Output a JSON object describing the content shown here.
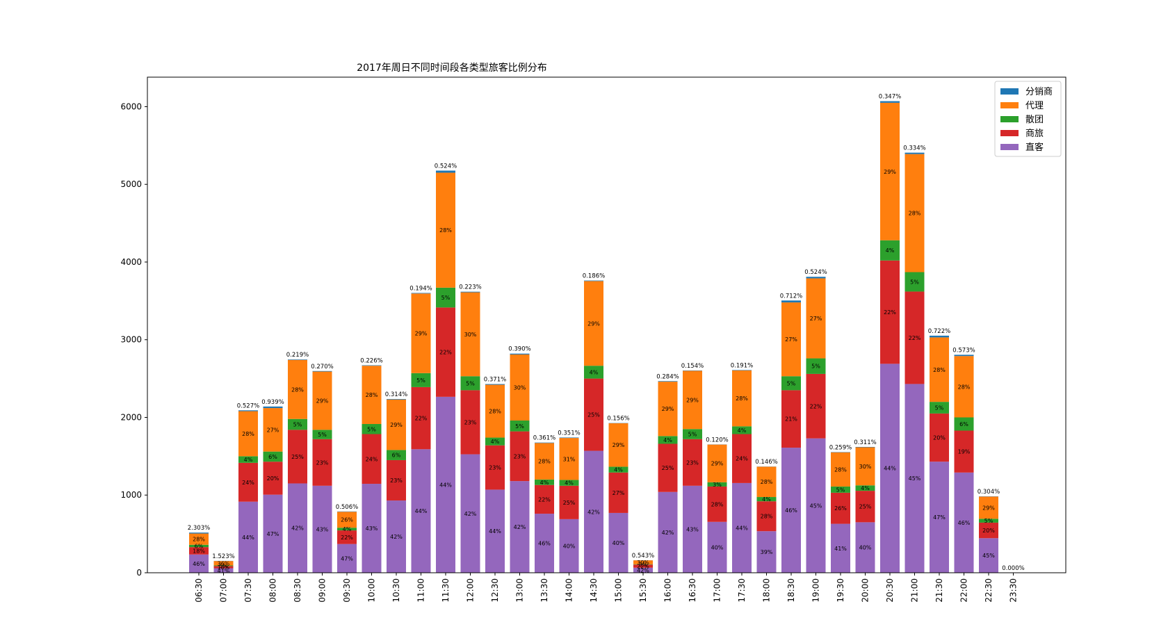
{
  "chart_data": {
    "type": "bar",
    "stacked": true,
    "title": "2017年周日不同时间段各类型旅客比例分布",
    "xlabel": "",
    "ylabel": "",
    "ylim": [
      0,
      6380
    ],
    "yticks": [
      "0",
      "1000",
      "2000",
      "3000",
      "4000",
      "5000",
      "6000"
    ],
    "ytick_values": [
      0,
      1000,
      2000,
      3000,
      4000,
      5000,
      6000
    ],
    "legend_position": "top-right",
    "grid": false,
    "categories": [
      "06:30",
      "07:00",
      "07:30",
      "08:00",
      "08:30",
      "09:00",
      "09:30",
      "10:00",
      "10:30",
      "11:00",
      "11:30",
      "12:00",
      "12:30",
      "13:00",
      "13:30",
      "14:00",
      "14:30",
      "15:00",
      "15:30",
      "16:00",
      "16:30",
      "17:00",
      "17:30",
      "18:00",
      "18:30",
      "19:00",
      "19:30",
      "20:00",
      "20:30",
      "21:00",
      "21:30",
      "22:00",
      "22:30",
      "23:30"
    ],
    "legend": [
      "分销商",
      "代理",
      "散团",
      "商旅",
      "直客"
    ],
    "series": [
      {
        "name": "直客",
        "color": "#9467bd",
        "values": [
          235,
          58,
          915,
          1005,
          1150,
          1120,
          370,
          1145,
          930,
          1590,
          2265,
          1525,
          1070,
          1180,
          760,
          690,
          1570,
          770,
          65,
          1040,
          1120,
          655,
          1155,
          535,
          1610,
          1730,
          630,
          650,
          2690,
          2430,
          1430,
          1290,
          445,
          0
        ],
        "labels": [
          "46%",
          "41%",
          "44%",
          "47%",
          "42%",
          "43%",
          "47%",
          "43%",
          "42%",
          "44%",
          "44%",
          "42%",
          "44%",
          "42%",
          "46%",
          "40%",
          "42%",
          "40%",
          "42%",
          "42%",
          "43%",
          "40%",
          "44%",
          "39%",
          "46%",
          "45%",
          "41%",
          "40%",
          "44%",
          "45%",
          "47%",
          "46%",
          "45%",
          ""
        ]
      },
      {
        "name": "商旅",
        "color": "#d62728",
        "values": [
          95,
          28,
          500,
          425,
          690,
          600,
          175,
          640,
          520,
          800,
          1150,
          825,
          570,
          640,
          370,
          430,
          930,
          520,
          40,
          620,
          600,
          455,
          630,
          385,
          740,
          830,
          400,
          405,
          1330,
          1190,
          620,
          540,
          200,
          0
        ],
        "labels": [
          "18%",
          "18%",
          "24%",
          "20%",
          "25%",
          "23%",
          "22%",
          "24%",
          "23%",
          "22%",
          "22%",
          "23%",
          "23%",
          "23%",
          "22%",
          "25%",
          "25%",
          "27%",
          "22%",
          "25%",
          "23%",
          "28%",
          "24%",
          "28%",
          "21%",
          "22%",
          "26%",
          "25%",
          "22%",
          "22%",
          "20%",
          "19%",
          "20%",
          ""
        ]
      },
      {
        "name": "散团",
        "color": "#2ca02c",
        "values": [
          30,
          8,
          85,
          130,
          140,
          120,
          35,
          130,
          130,
          180,
          255,
          180,
          100,
          140,
          70,
          75,
          165,
          75,
          5,
          100,
          130,
          55,
          100,
          55,
          180,
          200,
          80,
          70,
          260,
          250,
          150,
          170,
          50,
          0
        ],
        "labels": [
          "6%",
          "5%",
          "4%",
          "6%",
          "5%",
          "5%",
          "4%",
          "5%",
          "6%",
          "5%",
          "5%",
          "5%",
          "4%",
          "5%",
          "4%",
          "4%",
          "4%",
          "4%",
          "3%",
          "4%",
          "5%",
          "3%",
          "4%",
          "4%",
          "5%",
          "5%",
          "5%",
          "4%",
          "4%",
          "5%",
          "5%",
          "6%",
          "5%",
          ""
        ]
      },
      {
        "name": "代理",
        "color": "#ff7f0e",
        "values": [
          145,
          57,
          580,
          560,
          760,
          750,
          205,
          750,
          650,
          1025,
          1480,
          1080,
          680,
          850,
          470,
          540,
          1090,
          560,
          50,
          700,
          750,
          485,
          720,
          390,
          950,
          1030,
          440,
          490,
          1770,
          1520,
          830,
          790,
          285,
          0
        ],
        "labels": [
          "28%",
          "36%",
          "28%",
          "27%",
          "28%",
          "29%",
          "26%",
          "28%",
          "29%",
          "29%",
          "28%",
          "30%",
          "28%",
          "30%",
          "28%",
          "31%",
          "29%",
          "29%",
          "30%",
          "29%",
          "29%",
          "29%",
          "28%",
          "28%",
          "27%",
          "27%",
          "28%",
          "30%",
          "29%",
          "28%",
          "28%",
          "28%",
          "29%",
          ""
        ]
      },
      {
        "name": "分销商",
        "color": "#1f77b4",
        "values": [
          12,
          2,
          11,
          20,
          6,
          7,
          4,
          6,
          7,
          7,
          27,
          8,
          9,
          11,
          6,
          6,
          7,
          3,
          1,
          7,
          4,
          2,
          5,
          2,
          25,
          20,
          4,
          5,
          21,
          18,
          22,
          16,
          3,
          0
        ],
        "labels": []
      }
    ],
    "top_labels": [
      "2.303%",
      "1.523%",
      "0.527%",
      "0.939%",
      "0.219%",
      "0.270%",
      "0.506%",
      "0.226%",
      "0.314%",
      "0.194%",
      "0.524%",
      "0.223%",
      "0.371%",
      "0.390%",
      "0.361%",
      "0.351%",
      "0.186%",
      "0.156%",
      "0.543%",
      "0.284%",
      "0.154%",
      "0.120%",
      "0.191%",
      "0.146%",
      "0.712%",
      "0.524%",
      "0.259%",
      "0.311%",
      "0.347%",
      "0.334%",
      "0.722%",
      "0.573%",
      "0.304%",
      "0.000%"
    ]
  }
}
